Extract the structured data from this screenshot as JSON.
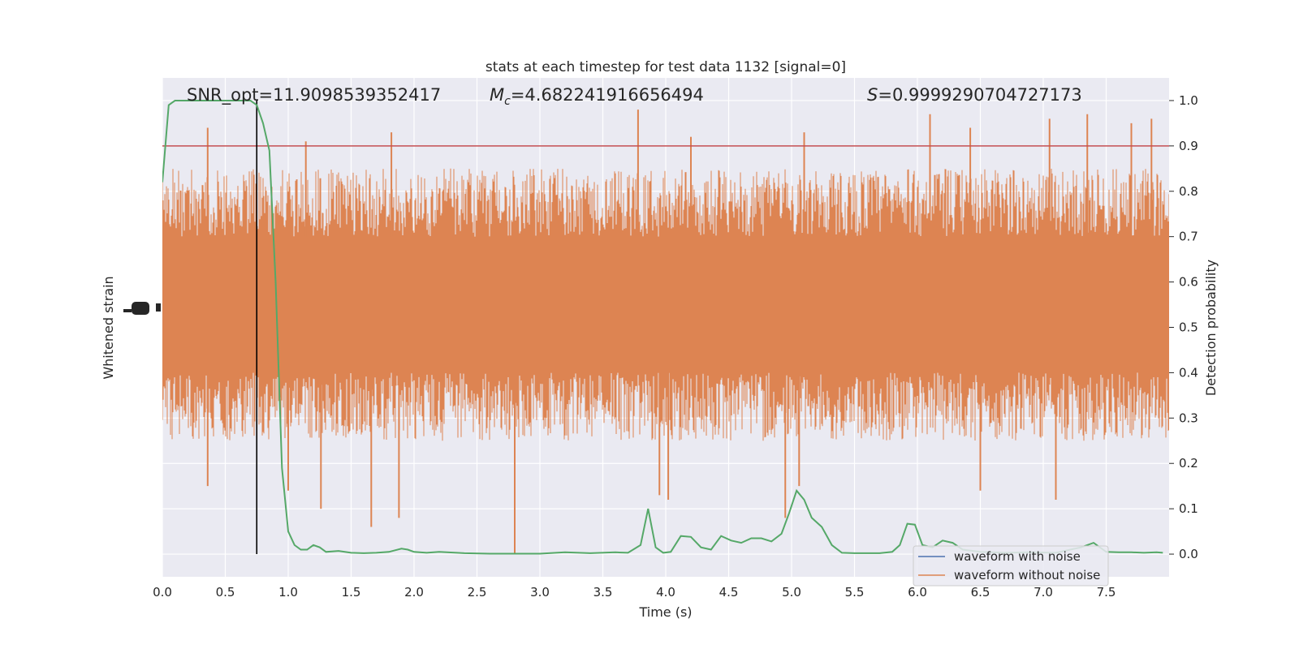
{
  "figure": {
    "title": "stats at each timestep for test data 1132 [signal=0]"
  },
  "stats": {
    "snr_text": "SNR_opt=11.9098539352417",
    "mc_symbol": "M",
    "mc_sub": "c",
    "mc_value": "=4.682241916656494",
    "s_symbol": "S",
    "s_value": "=0.9999290704727173"
  },
  "colors": {
    "plot_bg": "#eaeaf2",
    "grid": "#ffffff",
    "noise_waveform": "#4c72b0",
    "clean_waveform": "#dd8452",
    "probability": "#55a868",
    "threshold": "#c44e52",
    "peak_marker": "#000000"
  },
  "chart_data": {
    "type": "line",
    "title": "stats at each timestep for test data 1132 [signal=0]",
    "xlabel": "Time (s)",
    "ylabel_left": "Whitened strain",
    "ylabel_right": "Detection probability",
    "xlim": [
      0,
      8
    ],
    "ylim_right": [
      -0.05,
      1.05
    ],
    "x_ticks": [
      "0.0",
      "0.5",
      "1.0",
      "1.5",
      "2.0",
      "2.5",
      "3.0",
      "3.5",
      "4.0",
      "4.5",
      "5.0",
      "5.5",
      "6.0",
      "6.5",
      "7.0",
      "7.5"
    ],
    "y_right_ticks": [
      "0.0",
      "0.1",
      "0.2",
      "0.3",
      "0.4",
      "0.5",
      "0.6",
      "0.7",
      "0.8",
      "0.9",
      "1.0"
    ],
    "grid": true,
    "legend_position": "lower-right",
    "legend": [
      {
        "label": "waveform with noise",
        "color": "#4c72b0"
      },
      {
        "label": "waveform without noise",
        "color": "#dd8452"
      }
    ],
    "threshold": 0.9,
    "peak_time": 0.75,
    "strain_band": {
      "dense_range": [
        0.4,
        0.7
      ],
      "typical_range": [
        0.25,
        0.85
      ],
      "spikes_up": [
        {
          "x": 0.36,
          "y": 0.94
        },
        {
          "x": 1.14,
          "y": 0.91
        },
        {
          "x": 1.82,
          "y": 0.93
        },
        {
          "x": 3.78,
          "y": 0.98
        },
        {
          "x": 4.2,
          "y": 0.92
        },
        {
          "x": 5.1,
          "y": 0.93
        },
        {
          "x": 6.1,
          "y": 0.97
        },
        {
          "x": 6.42,
          "y": 0.94
        },
        {
          "x": 7.05,
          "y": 0.96
        },
        {
          "x": 7.35,
          "y": 0.97
        },
        {
          "x": 7.7,
          "y": 0.95
        },
        {
          "x": 7.86,
          "y": 0.96
        }
      ],
      "spikes_down": [
        {
          "x": 0.36,
          "y": 0.15
        },
        {
          "x": 1.0,
          "y": 0.14
        },
        {
          "x": 1.26,
          "y": 0.1
        },
        {
          "x": 1.66,
          "y": 0.06
        },
        {
          "x": 1.88,
          "y": 0.08
        },
        {
          "x": 2.8,
          "y": 0.0
        },
        {
          "x": 3.95,
          "y": 0.13
        },
        {
          "x": 4.02,
          "y": 0.12
        },
        {
          "x": 4.95,
          "y": 0.08
        },
        {
          "x": 5.06,
          "y": 0.15
        },
        {
          "x": 6.5,
          "y": 0.14
        },
        {
          "x": 7.1,
          "y": 0.12
        }
      ]
    },
    "probability_series": {
      "name": "",
      "x": [
        0.0,
        0.05,
        0.1,
        0.2,
        0.3,
        0.4,
        0.5,
        0.6,
        0.7,
        0.75,
        0.8,
        0.85,
        0.9,
        0.95,
        1.0,
        1.05,
        1.1,
        1.15,
        1.2,
        1.25,
        1.3,
        1.4,
        1.5,
        1.6,
        1.7,
        1.8,
        1.9,
        1.95,
        2.0,
        2.1,
        2.2,
        2.4,
        2.6,
        2.8,
        3.0,
        3.2,
        3.4,
        3.6,
        3.7,
        3.8,
        3.86,
        3.92,
        3.98,
        4.04,
        4.12,
        4.2,
        4.28,
        4.36,
        4.44,
        4.52,
        4.6,
        4.68,
        4.76,
        4.84,
        4.92,
        4.98,
        5.04,
        5.1,
        5.16,
        5.24,
        5.32,
        5.4,
        5.5,
        5.6,
        5.7,
        5.8,
        5.86,
        5.92,
        5.98,
        6.04,
        6.12,
        6.2,
        6.28,
        6.36,
        6.5,
        6.7,
        6.9,
        7.1,
        7.3,
        7.4,
        7.5,
        7.6,
        7.7,
        7.8,
        7.9,
        7.95
      ],
      "y": [
        0.82,
        0.99,
        1.0,
        1.0,
        1.0,
        1.0,
        1.0,
        1.0,
        1.0,
        0.99,
        0.95,
        0.89,
        0.6,
        0.19,
        0.05,
        0.02,
        0.01,
        0.01,
        0.02,
        0.015,
        0.005,
        0.007,
        0.003,
        0.002,
        0.003,
        0.005,
        0.012,
        0.01,
        0.005,
        0.003,
        0.005,
        0.002,
        0.001,
        0.001,
        0.001,
        0.004,
        0.002,
        0.004,
        0.003,
        0.02,
        0.1,
        0.015,
        0.003,
        0.005,
        0.04,
        0.038,
        0.015,
        0.01,
        0.04,
        0.03,
        0.025,
        0.035,
        0.035,
        0.028,
        0.045,
        0.09,
        0.14,
        0.12,
        0.08,
        0.06,
        0.02,
        0.003,
        0.002,
        0.002,
        0.002,
        0.005,
        0.02,
        0.067,
        0.065,
        0.02,
        0.015,
        0.03,
        0.025,
        0.01,
        0.005,
        0.003,
        0.004,
        0.003,
        0.015,
        0.025,
        0.005,
        0.004,
        0.004,
        0.003,
        0.004,
        0.003
      ]
    }
  }
}
